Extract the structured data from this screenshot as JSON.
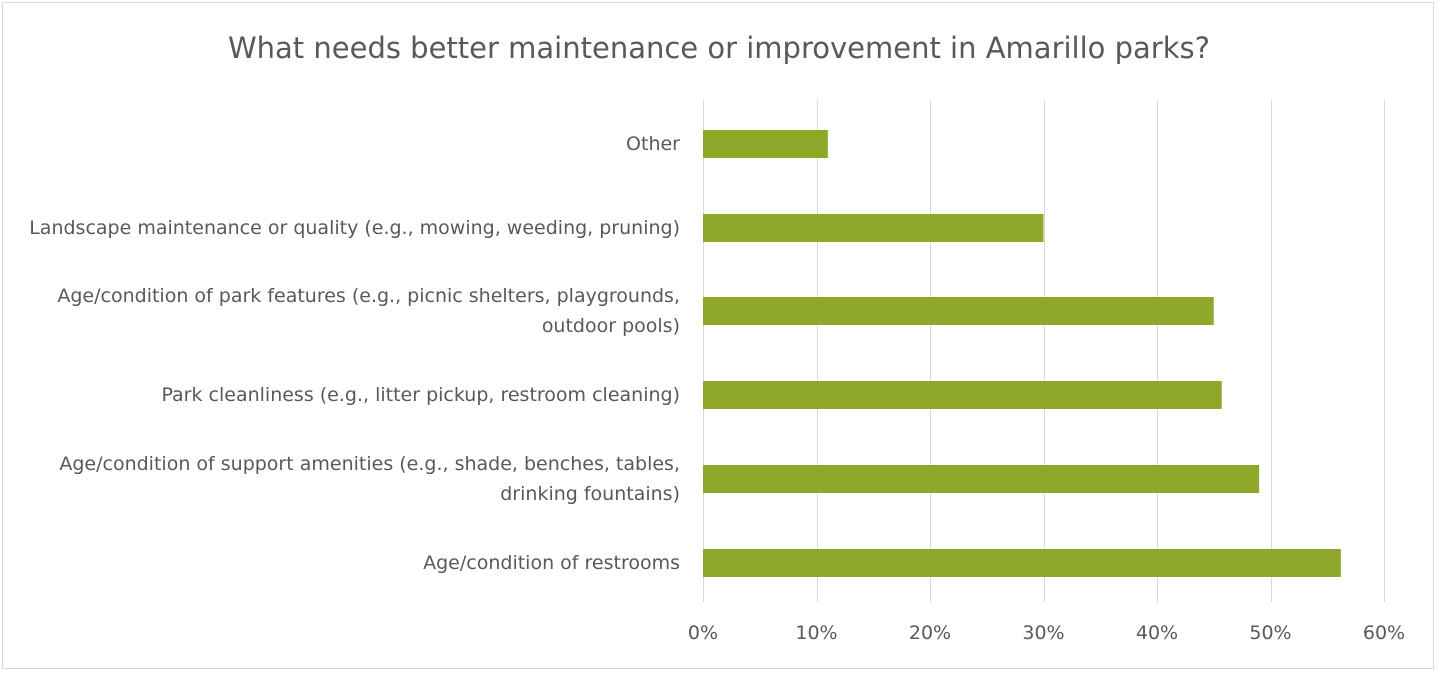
{
  "chart_data": {
    "type": "bar",
    "orientation": "horizontal",
    "title": "What needs better maintenance or improvement in Amarillo parks?",
    "categories": [
      "Other",
      "Landscape maintenance or quality (e.g., mowing, weeding, pruning)",
      "Age/condition of park features (e.g., picnic shelters, playgrounds, outdoor pools)",
      "Park cleanliness (e.g., litter pickup, restroom cleaning)",
      "Age/condition of support amenities (e.g., shade, benches, tables, drinking fountains)",
      "Age/condition of restrooms"
    ],
    "values": [
      11,
      30,
      45,
      45.7,
      49,
      56.2
    ],
    "xlim": [
      0,
      60
    ],
    "ticks": [
      0,
      10,
      20,
      30,
      40,
      50,
      60
    ],
    "tick_labels": [
      "0%",
      "10%",
      "20%",
      "30%",
      "40%",
      "50%",
      "60%"
    ],
    "xlabel": "",
    "ylabel": "",
    "grid": true,
    "legend": "none",
    "bar_color": "#8fa82b",
    "grid_color": "#d9d9d9",
    "text_color": "#595959"
  }
}
